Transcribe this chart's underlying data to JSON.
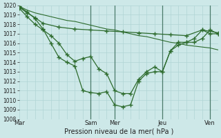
{
  "xlabel": "Pression niveau de la mer( hPa )",
  "ylim": [
    1008,
    1020
  ],
  "yticks": [
    1008,
    1009,
    1010,
    1011,
    1012,
    1013,
    1014,
    1015,
    1016,
    1017,
    1018,
    1019,
    1020
  ],
  "day_labels": [
    "Mar",
    "Sam",
    "Mer",
    "Jeu",
    "Ven"
  ],
  "day_positions": [
    0,
    9,
    12,
    18,
    24
  ],
  "vline_positions": [
    9,
    12,
    18,
    24
  ],
  "background_color": "#cde8e8",
  "grid_color": "#b0d4d4",
  "line_color": "#2d6b2d",
  "line_smooth_x": [
    0,
    1,
    2,
    3,
    4,
    5,
    6,
    7,
    8,
    9,
    10,
    11,
    12,
    13,
    14,
    15,
    16,
    17,
    18,
    19,
    20,
    21,
    22,
    23,
    24,
    25
  ],
  "line_smooth_y": [
    1019.9,
    1019.5,
    1019.2,
    1019.0,
    1018.8,
    1018.6,
    1018.4,
    1018.3,
    1018.1,
    1017.9,
    1017.7,
    1017.5,
    1017.4,
    1017.2,
    1017.0,
    1016.8,
    1016.7,
    1016.5,
    1016.3,
    1016.1,
    1016.0,
    1015.8,
    1015.7,
    1015.6,
    1015.5,
    1015.3
  ],
  "line_a_x": [
    0,
    1,
    2,
    3,
    5,
    7,
    9,
    11,
    13,
    15,
    17,
    19,
    21,
    23,
    25
  ],
  "line_a_y": [
    1019.8,
    1019.2,
    1018.7,
    1018.1,
    1017.7,
    1017.5,
    1017.4,
    1017.3,
    1017.2,
    1017.1,
    1017.0,
    1016.9,
    1016.8,
    1017.4,
    1017.1
  ],
  "line_b_x": [
    0,
    1,
    2,
    3,
    4,
    5,
    6,
    7,
    8,
    9,
    10,
    11,
    12,
    13,
    14,
    15,
    16,
    17,
    18,
    19,
    20,
    21,
    22,
    23,
    24,
    25
  ],
  "line_b_y": [
    1019.7,
    1018.8,
    1018.0,
    1017.4,
    1016.8,
    1016.0,
    1014.8,
    1014.1,
    1014.4,
    1014.6,
    1013.3,
    1012.8,
    1011.0,
    1010.7,
    1010.7,
    1012.2,
    1013.0,
    1013.5,
    1013.0,
    1015.2,
    1015.8,
    1016.1,
    1016.1,
    1016.5,
    1017.4,
    1017.0
  ],
  "line_c_x": [
    0,
    1,
    2,
    3,
    4,
    5,
    6,
    7,
    8,
    9,
    10,
    11,
    12,
    13,
    14,
    15,
    16,
    17,
    18,
    19,
    20,
    21,
    22,
    23,
    24,
    25
  ],
  "line_c_y": [
    1019.9,
    1019.3,
    1018.6,
    1017.5,
    1016.0,
    1014.5,
    1014.0,
    1013.6,
    1011.0,
    1010.8,
    1010.7,
    1010.9,
    1009.5,
    1009.3,
    1009.5,
    1012.0,
    1012.8,
    1013.0,
    1013.0,
    1015.2,
    1016.1,
    1016.1,
    1016.5,
    1017.4,
    1017.0,
    1017.0
  ],
  "marker": "+",
  "markersize": 4,
  "linewidth": 0.9
}
